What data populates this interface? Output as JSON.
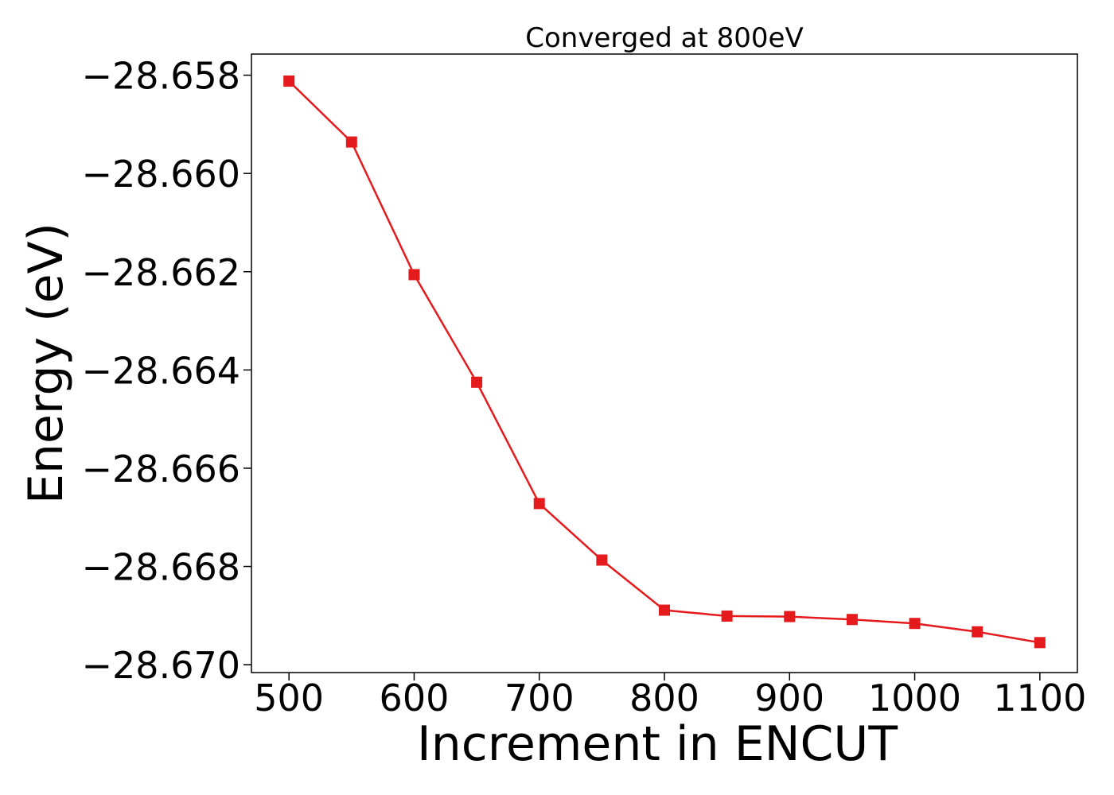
{
  "chart_data": {
    "type": "line",
    "title": "Converged at 800eV",
    "xlabel": "Increment in ENCUT",
    "ylabel": "Energy (eV)",
    "xlim": [
      470,
      1130
    ],
    "ylim": [
      -28.67016,
      -28.65757
    ],
    "x_ticks": [
      500,
      600,
      700,
      800,
      900,
      1000,
      1100
    ],
    "x_tick_labels": [
      "500",
      "600",
      "700",
      "800",
      "900",
      "1000",
      "1100"
    ],
    "y_ticks": [
      -28.658,
      -28.66,
      -28.662,
      -28.664,
      -28.666,
      -28.668,
      -28.67
    ],
    "y_tick_labels": [
      "−28.658",
      "−28.660",
      "−28.662",
      "−28.664",
      "−28.666",
      "−28.668",
      "−28.670"
    ],
    "grid": false,
    "legend": "none",
    "series": [
      {
        "color": "#e41a1c",
        "marker": "square",
        "x": [
          500,
          550,
          600,
          650,
          700,
          750,
          800,
          850,
          900,
          950,
          1000,
          1050,
          1100
        ],
        "y": [
          -28.65812,
          -28.65936,
          -28.66206,
          -28.66425,
          -28.66672,
          -28.66787,
          -28.66889,
          -28.66901,
          -28.66902,
          -28.66908,
          -28.66916,
          -28.66933,
          -28.66955
        ]
      }
    ]
  }
}
